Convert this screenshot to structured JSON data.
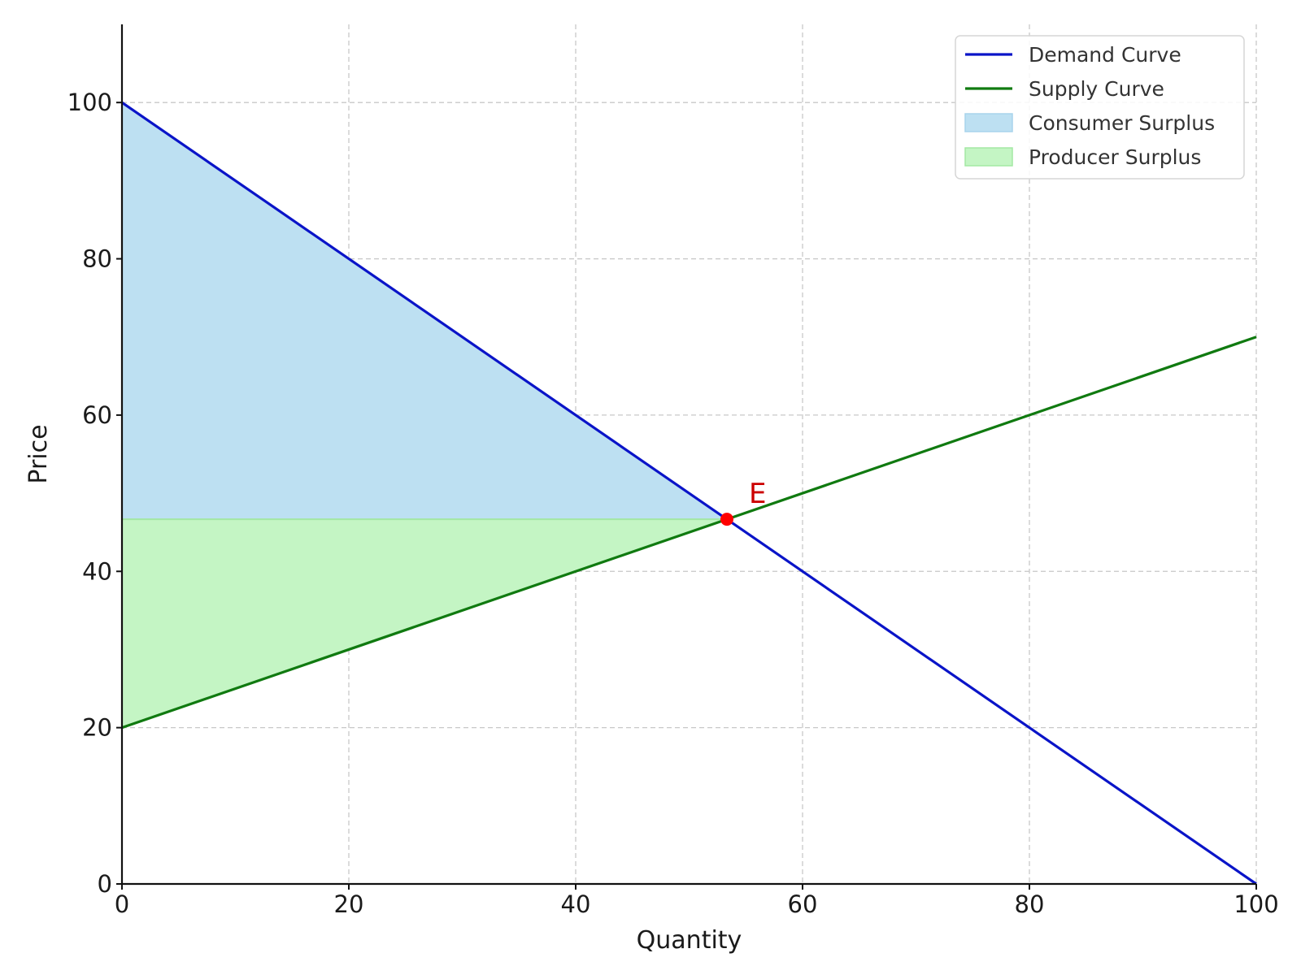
{
  "chart_data": {
    "type": "line",
    "title": "",
    "xlabel": "Quantity",
    "ylabel": "Price",
    "xlim": [
      0,
      100
    ],
    "ylim": [
      0,
      110
    ],
    "x_ticks": [
      0,
      20,
      40,
      60,
      80,
      100
    ],
    "y_ticks": [
      0,
      20,
      40,
      60,
      80,
      100
    ],
    "grid": true,
    "legend_position": "top-right",
    "series": [
      {
        "name": "Demand Curve",
        "kind": "line",
        "color": "#0a14c8",
        "x": [
          0,
          100
        ],
        "y": [
          100,
          0
        ]
      },
      {
        "name": "Supply Curve",
        "kind": "line",
        "color": "#107a10",
        "x": [
          0,
          100
        ],
        "y": [
          20,
          70
        ]
      }
    ],
    "areas": [
      {
        "name": "Consumer Surplus",
        "color": "#bde0f2",
        "edge_color": "#a8d4ec",
        "polygon": [
          [
            0,
            100
          ],
          [
            53.33,
            46.67
          ],
          [
            0,
            46.67
          ]
        ]
      },
      {
        "name": "Producer Surplus",
        "color": "#c4f5c4",
        "edge_color": "#a4e8a4",
        "polygon": [
          [
            0,
            46.67
          ],
          [
            53.33,
            46.67
          ],
          [
            0,
            20
          ]
        ]
      }
    ],
    "equilibrium": {
      "label": "E",
      "x": 53.33,
      "y": 46.67,
      "color": "#ff0000",
      "label_color": "#cc0000"
    }
  }
}
